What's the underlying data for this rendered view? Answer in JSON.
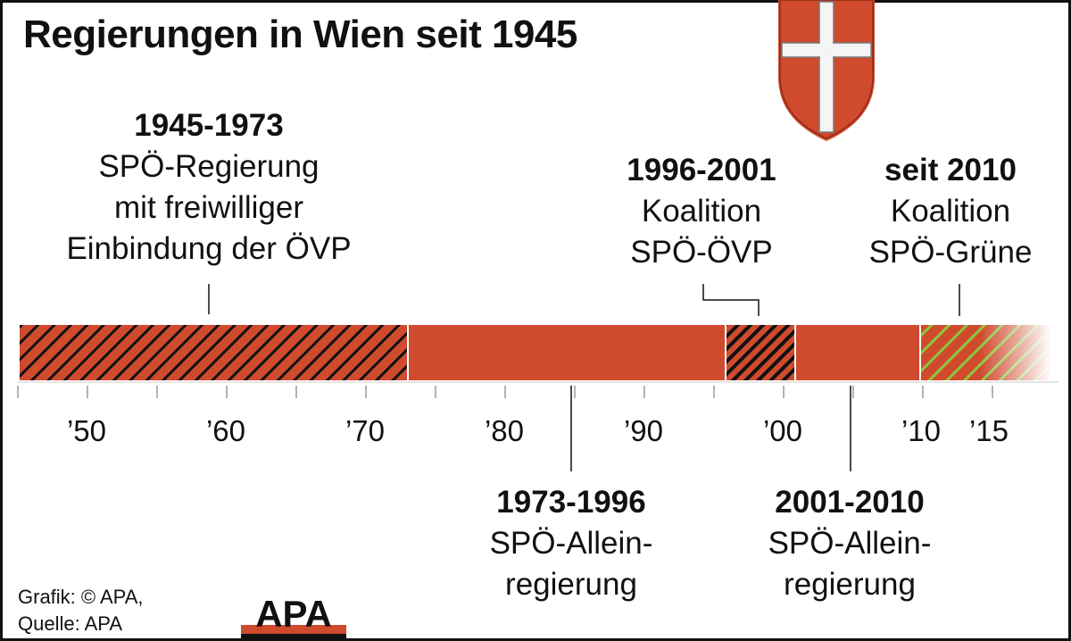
{
  "title": "Regierungen in Wien seit 1945",
  "colors": {
    "spo_red": "#d04a2e",
    "hatch_black": "#111111",
    "hatch_green": "#8cc63f",
    "axis": "#9a9a9a",
    "text": "#111111"
  },
  "periods": [
    {
      "years": "1945-1973",
      "line1": "SPÖ-Regierung",
      "line2": "mit freiwilliger",
      "line3": "Einbindung der ÖVP",
      "start": 1945,
      "end": 1973,
      "pattern": "hatch-black"
    },
    {
      "years": "1973-1996",
      "line1": "SPÖ-Allein-",
      "line2": "regierung",
      "start": 1973,
      "end": 1996,
      "pattern": "solid"
    },
    {
      "years": "1996-2001",
      "line1": "Koalition",
      "line2": "SPÖ-ÖVP",
      "start": 1996,
      "end": 2001,
      "pattern": "hatch-black"
    },
    {
      "years": "2001-2010",
      "line1": "SPÖ-Allein-",
      "line2": "regierung",
      "start": 2001,
      "end": 2010,
      "pattern": "solid"
    },
    {
      "years": "seit 2010",
      "line1": "Koalition",
      "line2": "SPÖ-Grüne",
      "start": 2010,
      "end": 2018,
      "pattern": "hatch-green-fade"
    }
  ],
  "axis": {
    "ticks": [
      {
        "year": 1950,
        "label": "’50"
      },
      {
        "year": 1960,
        "label": "’60"
      },
      {
        "year": 1970,
        "label": "’70"
      },
      {
        "year": 1980,
        "label": "’80"
      },
      {
        "year": 1990,
        "label": "’90"
      },
      {
        "year": 2000,
        "label": "’00"
      },
      {
        "year": 2010,
        "label": "’10"
      },
      {
        "year": 2015,
        "label": "’15"
      }
    ],
    "minor_from": 1945,
    "minor_to": 2015,
    "minor_step": 5
  },
  "credit": {
    "line1": "Grafik: © APA,",
    "line2": "Quelle: APA"
  },
  "logo_text": "APA",
  "crest_icon": "vienna-coat-of-arms-icon"
}
